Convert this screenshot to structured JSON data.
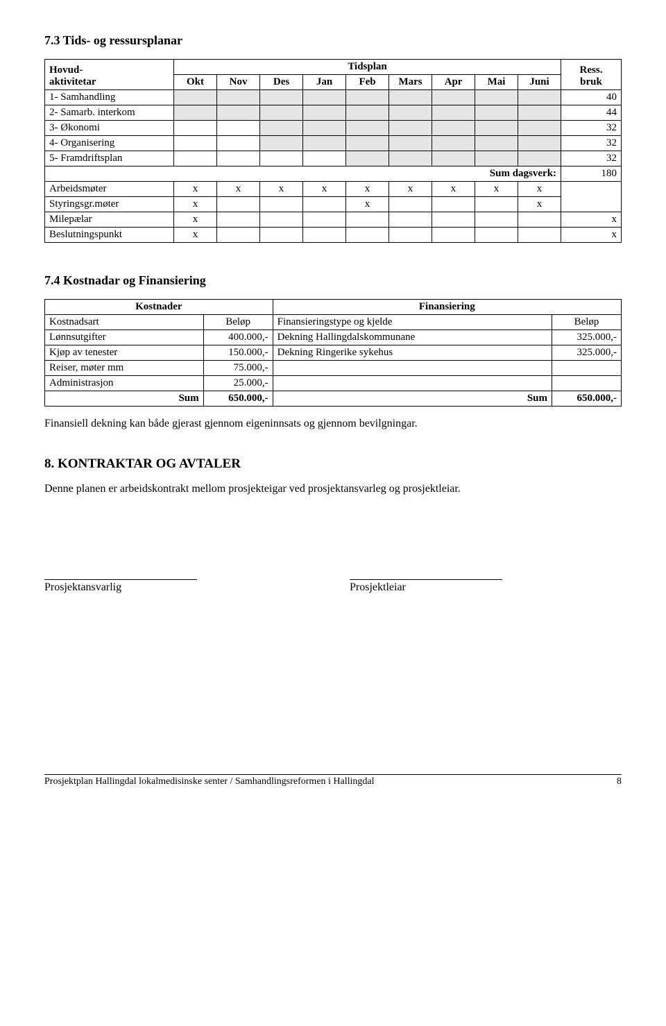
{
  "section73_title": "7.3 Tids- og ressursplanar",
  "timeplan": {
    "header": {
      "hovud": "Hovud-",
      "aktivitetar": "aktivitetar",
      "tidsplan": "Tidsplan",
      "ress": "Ress.",
      "bruk": "bruk",
      "months": [
        "Okt",
        "Nov",
        "Des",
        "Jan",
        "Feb",
        "Mars",
        "Apr",
        "Mai",
        "Juni"
      ]
    },
    "rows": [
      {
        "label": "1- Samhandling",
        "shade": [
          0,
          1,
          2,
          3,
          4,
          5,
          6,
          7,
          8
        ],
        "res": "40"
      },
      {
        "label": "2- Samarb. interkom",
        "shade": [
          0,
          1,
          2,
          3,
          4,
          5,
          6,
          7,
          8
        ],
        "res": "44"
      },
      {
        "label": "3- Økonomi",
        "shade": [
          2,
          3,
          4,
          5,
          6,
          7,
          8
        ],
        "res": "32"
      },
      {
        "label": "4- Organisering",
        "shade": [
          2,
          3,
          4,
          5,
          6,
          7,
          8
        ],
        "res": "32"
      },
      {
        "label": "5- Framdriftsplan",
        "shade": [
          4,
          5,
          6,
          7,
          8
        ],
        "res": "32"
      }
    ],
    "sum_label": "Sum dagsverk:",
    "sum_value": "180",
    "arbeidsmoter": {
      "label": "Arbeidsmøter",
      "marks": [
        0,
        1,
        2,
        3,
        4,
        5,
        6,
        7,
        8
      ]
    },
    "styringsgr": {
      "label": "Styringsgr.møter",
      "marks": [
        0,
        4,
        8
      ]
    },
    "milepaelar": {
      "label": "Milepælar",
      "marks": [
        0
      ],
      "mark_res": "x"
    },
    "beslutning": {
      "label": "Beslutningspunkt",
      "marks": [
        0
      ],
      "mark_res": "x"
    }
  },
  "section74_title": "7.4 Kostnadar og Finansiering",
  "kost": {
    "kostnader_hdr": "Kostnader",
    "finans_hdr": "Finansiering",
    "col_kostart": "Kostnadsart",
    "col_belop": "Beløp",
    "col_fintype": "Finansieringstype og kjelde",
    "rows": [
      {
        "k": "Lønnsutgifter",
        "kb": "400.000,-",
        "f": "Dekning Hallingdalskommunane",
        "fb": "325.000,-"
      },
      {
        "k": "Kjøp av tenester",
        "kb": "150.000,-",
        "f": "Dekning Ringerike sykehus",
        "fb": "325.000,-"
      },
      {
        "k": "Reiser, møter mm",
        "kb": "75.000,-",
        "f": "",
        "fb": ""
      },
      {
        "k": "Administrasjon",
        "kb": "25.000,-",
        "f": "",
        "fb": ""
      }
    ],
    "sum_label": "Sum",
    "sum_k": "650.000,-",
    "sum_f": "650.000,-"
  },
  "para_finansiell": "Finansiell dekning kan både gjerast gjennom eigeninnsats og gjennom bevilgningar.",
  "section8_title": "8. KONTRAKTAR OG AVTALER",
  "para_kontrakt": "Denne planen er arbeidskontrakt mellom prosjekteigar ved prosjektansvarleg og prosjektleiar.",
  "sig_left": "Prosjektansvarlig",
  "sig_right": "Prosjektleiar",
  "footer_text": "Prosjektplan Hallingdal lokalmedisinske senter / Samhandlingsreformen i Hallingdal",
  "page_num": "8",
  "mark": "x"
}
